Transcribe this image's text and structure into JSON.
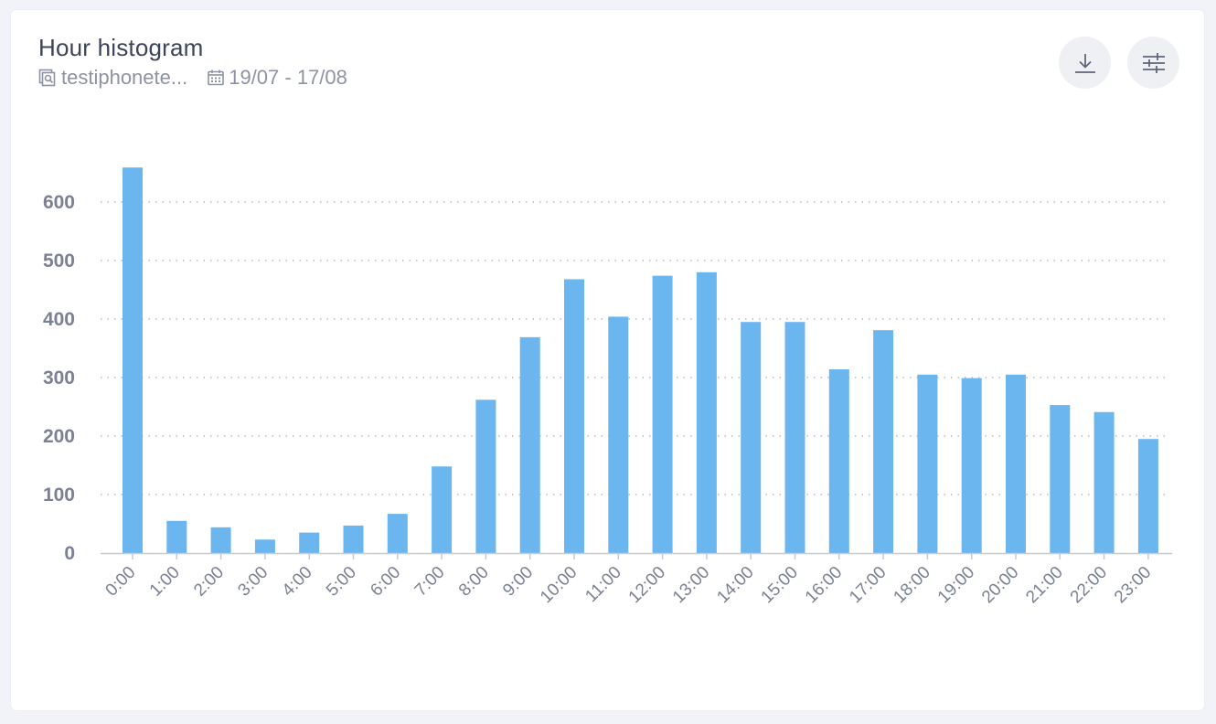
{
  "header": {
    "title": "Hour histogram",
    "source": "testiphonete...",
    "date_range": "19/07 - 17/08"
  },
  "icons": {
    "source": "report-search-icon",
    "date": "calendar-icon",
    "download": "download-icon",
    "settings": "sliders-icon"
  },
  "colors": {
    "bar": "#6cb6f0",
    "grid": "#b9bcc6",
    "axis": "#c6cad6",
    "tick_text": "#7b8194"
  },
  "chart_data": {
    "type": "bar",
    "title": "Hour histogram",
    "xlabel": "",
    "ylabel": "",
    "categories": [
      "0:00",
      "1:00",
      "2:00",
      "3:00",
      "4:00",
      "5:00",
      "6:00",
      "7:00",
      "8:00",
      "9:00",
      "10:00",
      "11:00",
      "12:00",
      "13:00",
      "14:00",
      "15:00",
      "16:00",
      "17:00",
      "18:00",
      "19:00",
      "20:00",
      "21:00",
      "22:00",
      "23:00"
    ],
    "values": [
      659,
      55,
      44,
      23,
      35,
      47,
      67,
      148,
      262,
      369,
      468,
      404,
      474,
      480,
      395,
      395,
      314,
      381,
      305,
      299,
      305,
      253,
      241,
      195
    ],
    "ylim": [
      0,
      700
    ],
    "yticks": [
      0,
      100,
      200,
      300,
      400,
      500,
      600
    ],
    "grid": true,
    "legend": "none"
  }
}
